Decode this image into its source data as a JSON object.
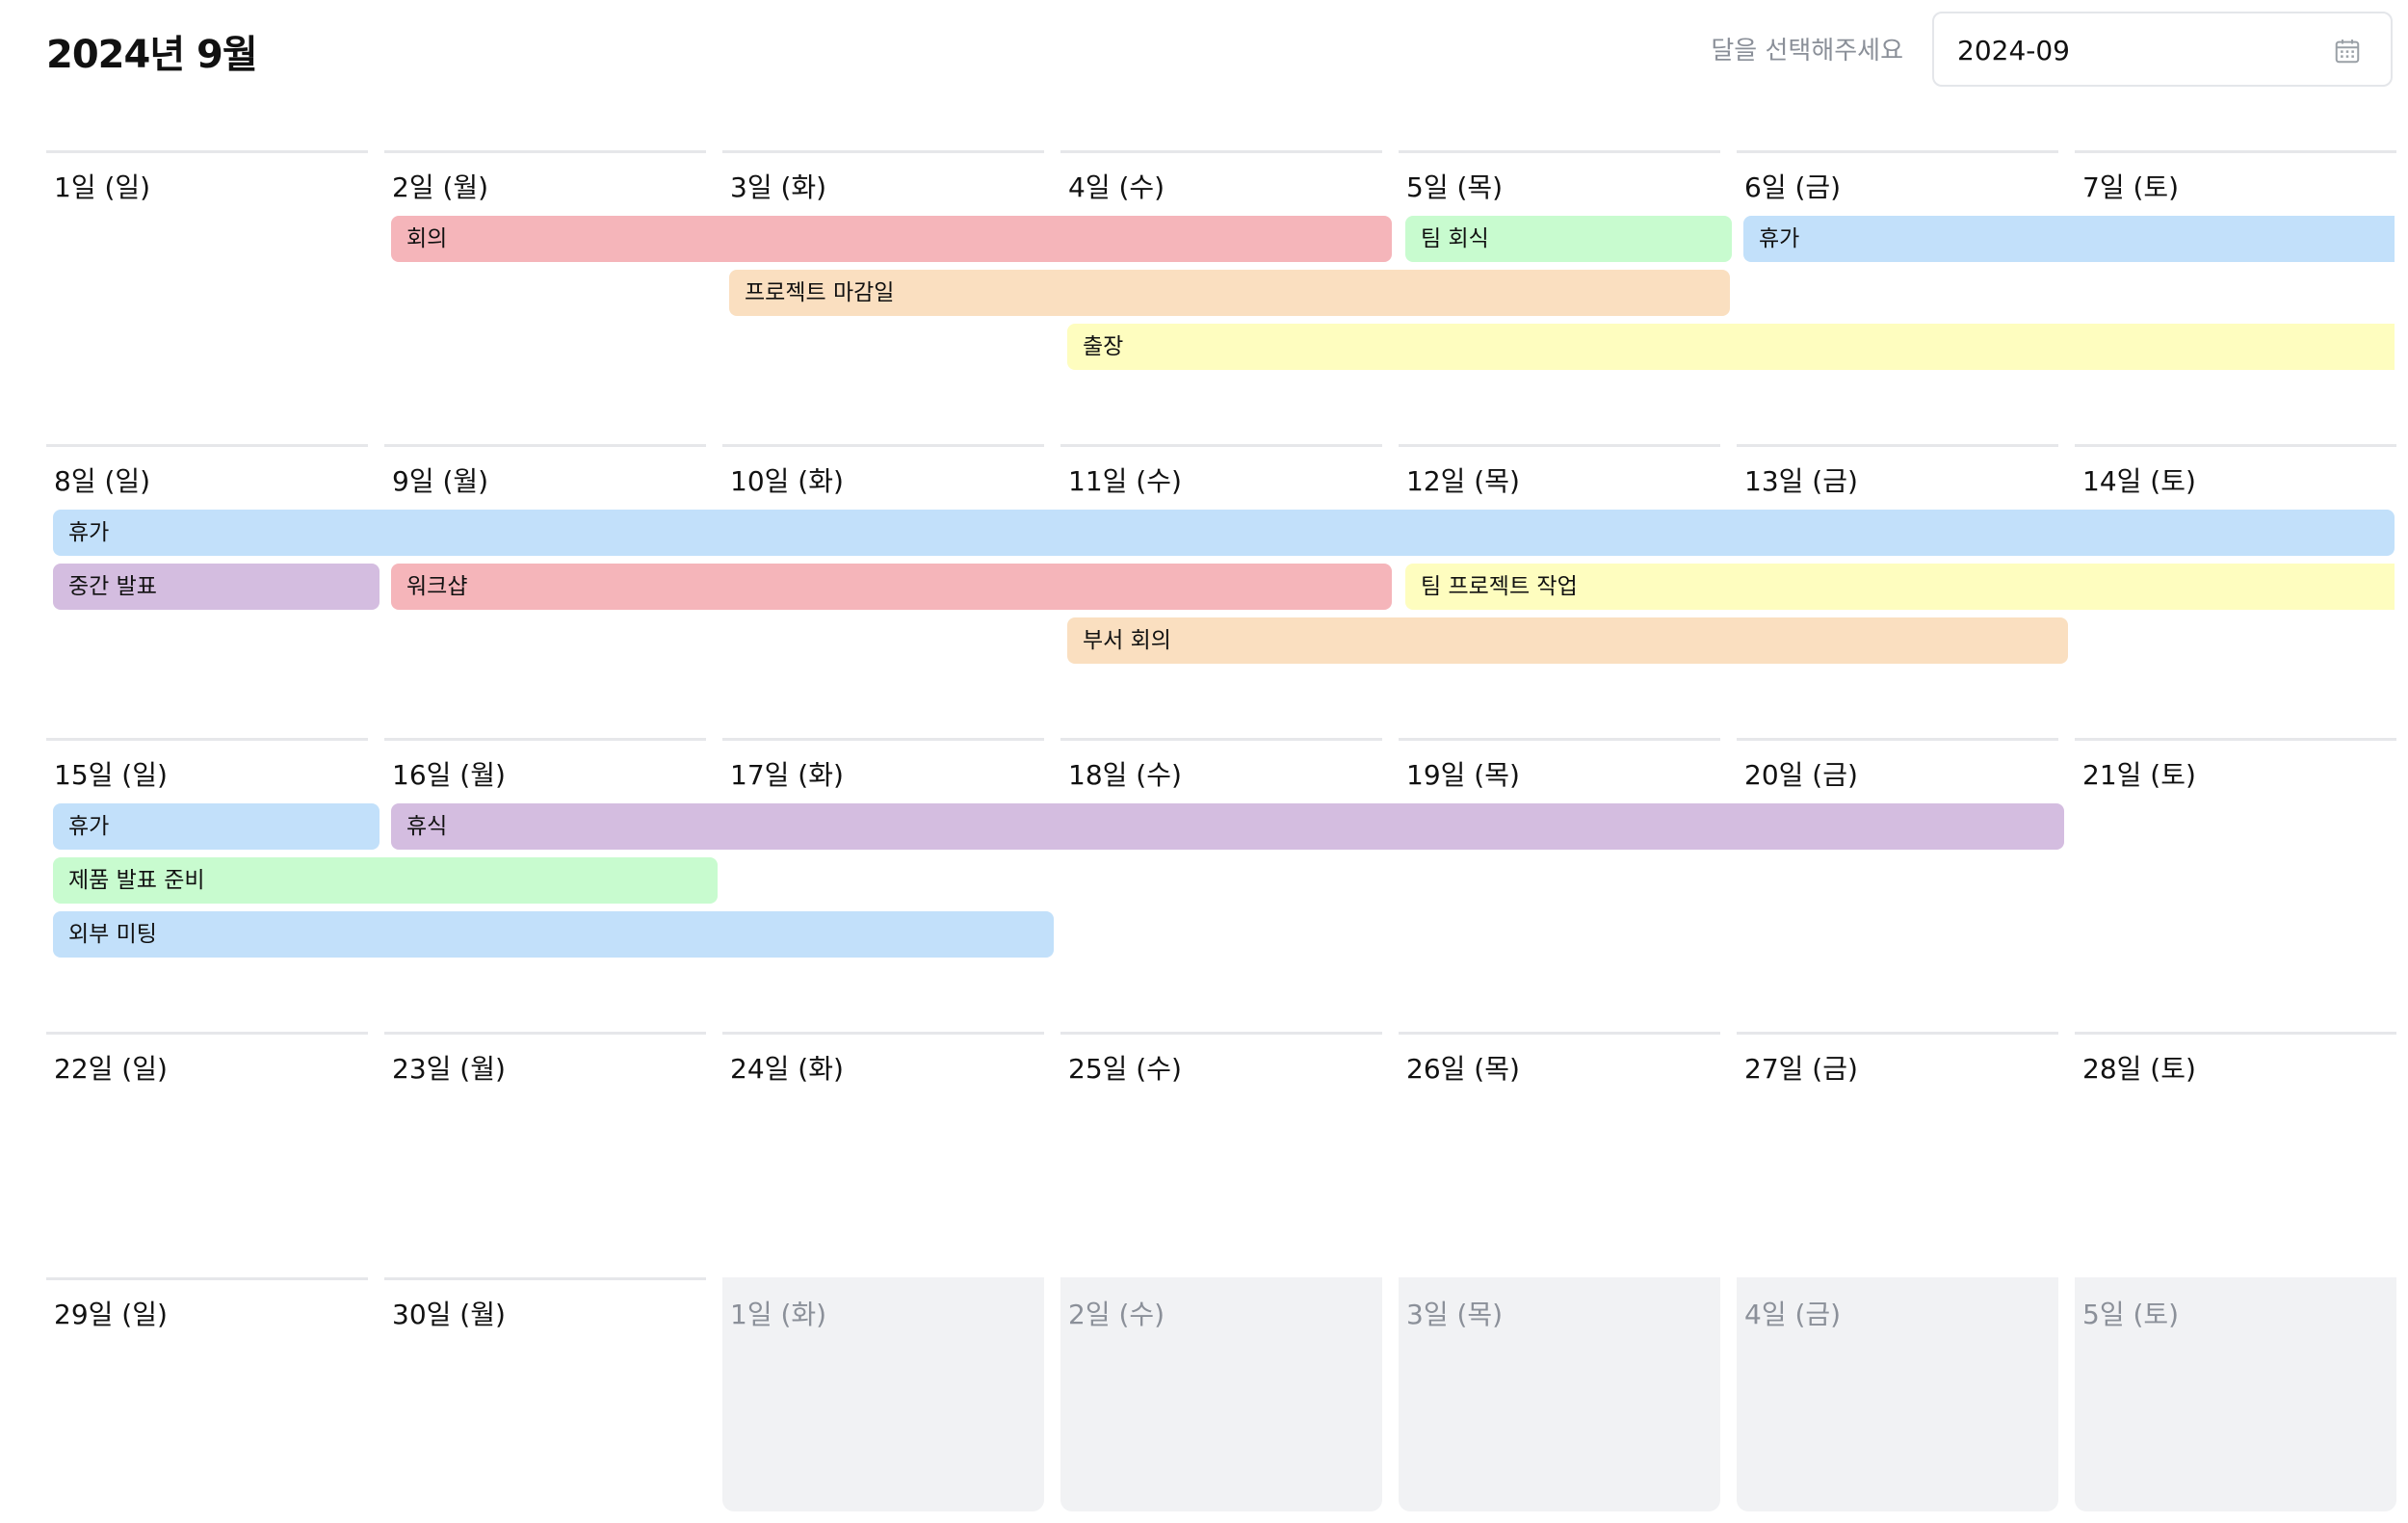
{
  "header": {
    "title": "2024년 9월",
    "month_label": "달을 선택해주세요",
    "month_value": "2024-09",
    "month_icon": "calendar-icon"
  },
  "weeks": [
    {
      "days": [
        {
          "label": "1일 (일)",
          "outside": false
        },
        {
          "label": "2일 (월)",
          "outside": false
        },
        {
          "label": "3일 (화)",
          "outside": false
        },
        {
          "label": "4일 (수)",
          "outside": false
        },
        {
          "label": "5일 (목)",
          "outside": false
        },
        {
          "label": "6일 (금)",
          "outside": false
        },
        {
          "label": "7일 (토)",
          "outside": false
        }
      ],
      "events": [
        {
          "title": "회의",
          "color": "#f5b5ba"
        },
        {
          "title": "팀 회식",
          "color": "#c8fbcf"
        },
        {
          "title": "휴가",
          "color": "#c2e0fa"
        },
        {
          "title": "프로젝트 마감일",
          "color": "#fadfc0"
        },
        {
          "title": "출장",
          "color": "#fefdbf"
        }
      ]
    },
    {
      "days": [
        {
          "label": "8일 (일)",
          "outside": false
        },
        {
          "label": "9일 (월)",
          "outside": false
        },
        {
          "label": "10일 (화)",
          "outside": false
        },
        {
          "label": "11일 (수)",
          "outside": false
        },
        {
          "label": "12일 (목)",
          "outside": false
        },
        {
          "label": "13일 (금)",
          "outside": false
        },
        {
          "label": "14일 (토)",
          "outside": false
        }
      ],
      "events": [
        {
          "title": "휴가",
          "color": "#c2e0fa"
        },
        {
          "title": "중간 발표",
          "color": "#d4bde0"
        },
        {
          "title": "워크샵",
          "color": "#f5b5ba"
        },
        {
          "title": "팀 프로젝트 작업",
          "color": "#fefdbf"
        },
        {
          "title": "부서 회의",
          "color": "#fadfc0"
        }
      ]
    },
    {
      "days": [
        {
          "label": "15일 (일)",
          "outside": false
        },
        {
          "label": "16일 (월)",
          "outside": false
        },
        {
          "label": "17일 (화)",
          "outside": false
        },
        {
          "label": "18일 (수)",
          "outside": false
        },
        {
          "label": "19일 (목)",
          "outside": false
        },
        {
          "label": "20일 (금)",
          "outside": false
        },
        {
          "label": "21일 (토)",
          "outside": false
        }
      ],
      "events": [
        {
          "title": "휴가",
          "color": "#c2e0fa"
        },
        {
          "title": "휴식",
          "color": "#d4bde0"
        },
        {
          "title": "제품 발표 준비",
          "color": "#c8fbcf"
        },
        {
          "title": "외부 미팅",
          "color": "#c2e0fa"
        }
      ]
    },
    {
      "days": [
        {
          "label": "22일 (일)",
          "outside": false
        },
        {
          "label": "23일 (월)",
          "outside": false
        },
        {
          "label": "24일 (화)",
          "outside": false
        },
        {
          "label": "25일 (수)",
          "outside": false
        },
        {
          "label": "26일 (목)",
          "outside": false
        },
        {
          "label": "27일 (금)",
          "outside": false
        },
        {
          "label": "28일 (토)",
          "outside": false
        }
      ],
      "events": []
    },
    {
      "days": [
        {
          "label": "29일 (일)",
          "outside": false
        },
        {
          "label": "30일 (월)",
          "outside": false
        },
        {
          "label": "1일 (화)",
          "outside": true
        },
        {
          "label": "2일 (수)",
          "outside": true
        },
        {
          "label": "3일 (목)",
          "outside": true
        },
        {
          "label": "4일 (금)",
          "outside": true
        },
        {
          "label": "5일 (토)",
          "outside": true
        }
      ],
      "events": []
    }
  ]
}
